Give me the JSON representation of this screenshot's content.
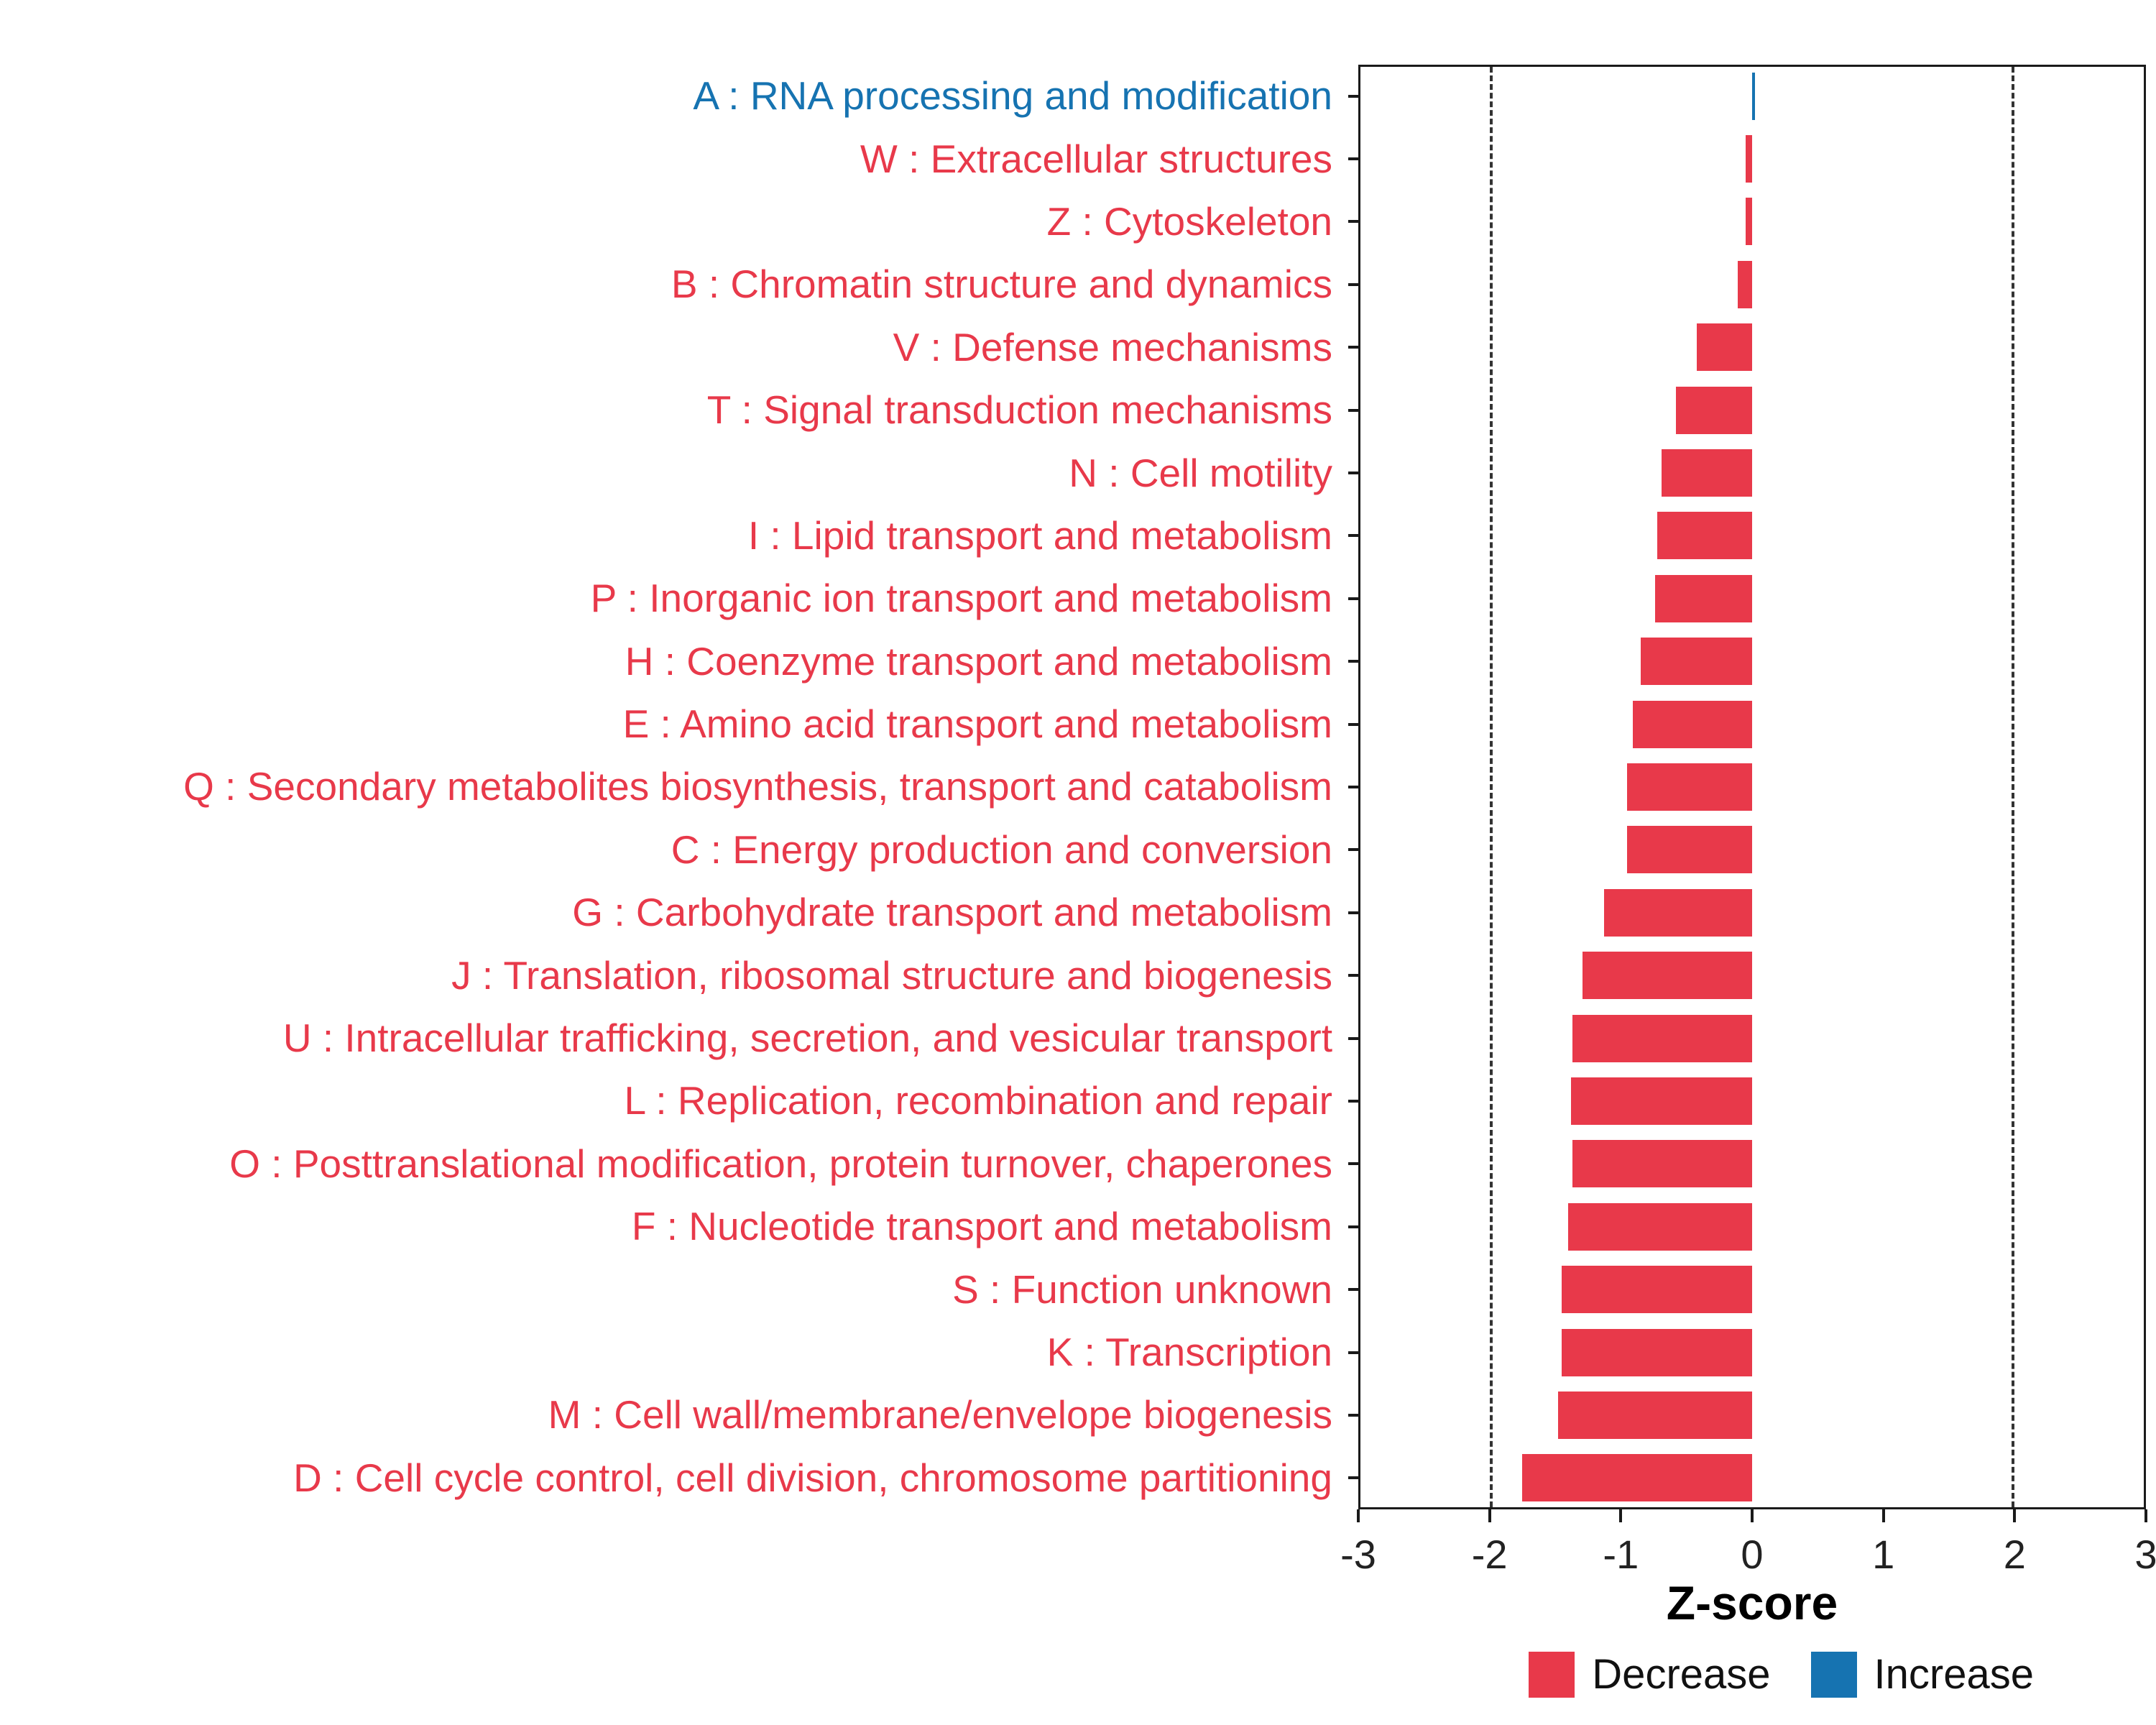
{
  "chart_data": {
    "type": "bar",
    "orientation": "horizontal",
    "title": "",
    "xlabel": "Z-score",
    "xlim": [
      -3,
      3
    ],
    "x_ticks": [
      -3,
      -2,
      -1,
      0,
      1,
      2,
      3
    ],
    "reference_lines": [
      -2,
      2
    ],
    "grid": "off",
    "legend_position": "bottom-right",
    "colors": {
      "Decrease": "#E8394A",
      "Increase": "#1673B1"
    },
    "legend": [
      {
        "label": "Decrease",
        "group": "Decrease",
        "color": "#E8394A"
      },
      {
        "label": "Increase",
        "group": "Increase",
        "color": "#1673B1"
      }
    ],
    "categories": [
      {
        "label": "A : RNA processing and modification",
        "value": 0.02,
        "group": "Increase"
      },
      {
        "label": "W : Extracellular structures",
        "value": -0.05,
        "group": "Decrease"
      },
      {
        "label": "Z : Cytoskeleton",
        "value": -0.05,
        "group": "Decrease"
      },
      {
        "label": "B : Chromatin structure and dynamics",
        "value": -0.11,
        "group": "Decrease"
      },
      {
        "label": "V : Defense mechanisms",
        "value": -0.42,
        "group": "Decrease"
      },
      {
        "label": "T : Signal transduction mechanisms",
        "value": -0.58,
        "group": "Decrease"
      },
      {
        "label": "N : Cell motility",
        "value": -0.69,
        "group": "Decrease"
      },
      {
        "label": "I : Lipid transport and metabolism",
        "value": -0.72,
        "group": "Decrease"
      },
      {
        "label": "P : Inorganic ion transport and metabolism",
        "value": -0.74,
        "group": "Decrease"
      },
      {
        "label": "H : Coenzyme transport and metabolism",
        "value": -0.85,
        "group": "Decrease"
      },
      {
        "label": "E : Amino acid transport and metabolism",
        "value": -0.91,
        "group": "Decrease"
      },
      {
        "label": "Q : Secondary metabolites biosynthesis, transport and catabolism",
        "value": -0.95,
        "group": "Decrease"
      },
      {
        "label": "C : Energy production and conversion",
        "value": -0.95,
        "group": "Decrease"
      },
      {
        "label": "G : Carbohydrate transport and metabolism",
        "value": -1.13,
        "group": "Decrease"
      },
      {
        "label": "J : Translation, ribosomal structure and biogenesis",
        "value": -1.29,
        "group": "Decrease"
      },
      {
        "label": "U : Intracellular trafficking, secretion, and vesicular transport",
        "value": -1.37,
        "group": "Decrease"
      },
      {
        "label": "L : Replication, recombination and repair",
        "value": -1.38,
        "group": "Decrease"
      },
      {
        "label": "O : Posttranslational modification, protein turnover, chaperones",
        "value": -1.37,
        "group": "Decrease"
      },
      {
        "label": "F : Nucleotide transport and metabolism",
        "value": -1.4,
        "group": "Decrease"
      },
      {
        "label": "S : Function unknown",
        "value": -1.45,
        "group": "Decrease"
      },
      {
        "label": "K : Transcription",
        "value": -1.45,
        "group": "Decrease"
      },
      {
        "label": "M : Cell wall/membrane/envelope biogenesis",
        "value": -1.48,
        "group": "Decrease"
      },
      {
        "label": "D : Cell cycle control, cell division, chromosome partitioning",
        "value": -1.75,
        "group": "Decrease"
      }
    ]
  }
}
